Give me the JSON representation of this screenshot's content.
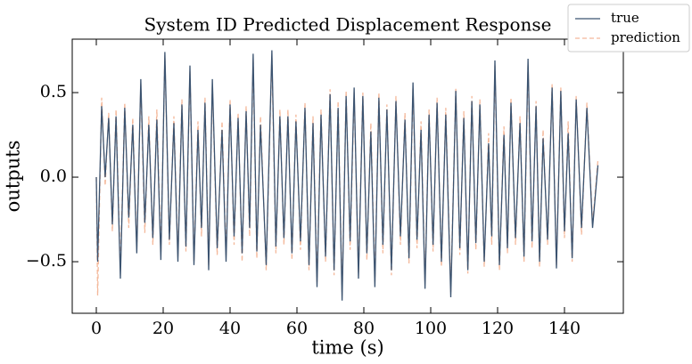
{
  "chart_data": {
    "type": "line",
    "title": "System ID Predicted Displacement Response",
    "x_label": "time (s)",
    "y_label": "outputs",
    "legend": "upper right",
    "xlim": [
      -7.2,
      157.6
    ],
    "ylim": [
      -0.805,
      0.816
    ],
    "xticks": [
      0,
      20,
      40,
      60,
      80,
      100,
      120,
      140
    ],
    "yticks": [
      {
        "value": -0.5,
        "label": "−0.5"
      },
      {
        "value": 0,
        "label": "0.0"
      },
      0.5
    ],
    "x": [
      0,
      0.4,
      1.6,
      2.65,
      3.7,
      4.8,
      5.9,
      7.2,
      8.5,
      9.7,
      10.9,
      12.1,
      13.3,
      14.5,
      15.7,
      16.9,
      18.1,
      19.3,
      20.5,
      21.85,
      23.2,
      24.4,
      25.6,
      26.8,
      28.0,
      29.2,
      30.4,
      31.45,
      32.5,
      33.6,
      34.7,
      36.15,
      37.6,
      38.8,
      40.0,
      41.2,
      42.4,
      43.6,
      44.8,
      45.85,
      46.9,
      48.0,
      49.1,
      50.8,
      52.5,
      53.7,
      54.9,
      56.1,
      57.3,
      58.5,
      59.7,
      61.05,
      62.4,
      63.6,
      64.8,
      66.0,
      67.2,
      68.55,
      69.9,
      71.1,
      72.3,
      73.5,
      74.7,
      75.9,
      77.1,
      78.4,
      79.7,
      80.9,
      82.1,
      83.3,
      84.5,
      85.7,
      86.9,
      88.25,
      89.6,
      90.95,
      92.3,
      93.5,
      94.7,
      95.9,
      97.1,
      98.3,
      99.5,
      100.7,
      101.9,
      103.2,
      104.5,
      106.0,
      107.5,
      108.7,
      109.9,
      111.1,
      112.3,
      113.5,
      114.7,
      116.0,
      117.3,
      118.25,
      119.2,
      120.55,
      121.9,
      122.95,
      124.0,
      125.35,
      126.7,
      127.9,
      129.1,
      130.3,
      131.5,
      132.55,
      133.6,
      134.95,
      136.3,
      137.6,
      138.9,
      140.0,
      141.1,
      142.3,
      143.5,
      145.1,
      146.7,
      148.4,
      150
    ],
    "series": [
      {
        "name": "true",
        "color": "#3b5370",
        "dash": false,
        "values": [
          0,
          -0.5,
          0.42,
          0.0,
          0.35,
          -0.28,
          0.36,
          -0.6,
          0.41,
          -0.24,
          0.31,
          -0.45,
          0.58,
          -0.27,
          0.31,
          -0.36,
          0.34,
          -0.49,
          0.74,
          -0.37,
          0.32,
          -0.5,
          0.43,
          -0.41,
          0.66,
          -0.52,
          0.28,
          -0.3,
          0.44,
          -0.55,
          0.58,
          -0.42,
          0.28,
          -0.5,
          0.43,
          -0.35,
          0.35,
          -0.45,
          0.39,
          -0.3,
          0.73,
          -0.44,
          0.31,
          -0.52,
          0.75,
          -0.41,
          0.36,
          -0.36,
          0.36,
          -0.45,
          0.33,
          -0.38,
          0.41,
          -0.52,
          0.32,
          -0.65,
          0.37,
          -0.47,
          0.49,
          -0.55,
          0.41,
          -0.73,
          0.48,
          -0.38,
          0.53,
          -0.6,
          0.48,
          -0.45,
          0.27,
          -0.65,
          0.47,
          -0.4,
          0.4,
          -0.55,
          0.45,
          -0.35,
          0.34,
          -0.48,
          0.56,
          -0.37,
          0.28,
          -0.66,
          0.37,
          -0.4,
          0.44,
          -0.5,
          0.37,
          -0.71,
          0.51,
          -0.42,
          0.35,
          -0.55,
          0.45,
          -0.39,
          0.43,
          -0.5,
          0.2,
          -0.35,
          0.69,
          -0.52,
          0.25,
          -0.42,
          0.44,
          -0.36,
          0.32,
          -0.47,
          0.7,
          -0.38,
          0.42,
          -0.5,
          0.23,
          -0.37,
          0.53,
          -0.54,
          0.51,
          -0.32,
          0.26,
          -0.48,
          0.46,
          -0.3,
          0.41,
          -0.3,
          0.07
        ]
      },
      {
        "name": "prediction",
        "color": "#f4b89a",
        "dash": true,
        "values": [
          0,
          -0.7,
          0.47,
          -0.05,
          0.38,
          -0.32,
          0.4,
          -0.55,
          0.44,
          -0.3,
          0.35,
          -0.42,
          0.55,
          -0.33,
          0.36,
          -0.4,
          0.4,
          -0.45,
          0.72,
          -0.4,
          0.36,
          -0.47,
          0.46,
          -0.44,
          0.63,
          -0.5,
          0.33,
          -0.35,
          0.47,
          -0.52,
          0.55,
          -0.46,
          0.33,
          -0.47,
          0.46,
          -0.4,
          0.38,
          -0.5,
          0.42,
          -0.35,
          0.7,
          -0.48,
          0.36,
          -0.55,
          0.72,
          -0.45,
          0.4,
          -0.4,
          0.4,
          -0.49,
          0.37,
          -0.43,
          0.44,
          -0.55,
          0.36,
          -0.62,
          0.4,
          -0.5,
          0.52,
          -0.58,
          0.45,
          -0.7,
          0.51,
          -0.43,
          0.5,
          -0.57,
          0.5,
          -0.49,
          0.32,
          -0.62,
          0.5,
          -0.45,
          0.43,
          -0.58,
          0.48,
          -0.4,
          0.38,
          -0.51,
          0.53,
          -0.42,
          0.33,
          -0.63,
          0.4,
          -0.44,
          0.47,
          -0.53,
          0.41,
          -0.68,
          0.53,
          -0.46,
          0.39,
          -0.57,
          0.48,
          -0.43,
          0.46,
          -0.53,
          0.26,
          -0.4,
          0.66,
          -0.55,
          0.3,
          -0.45,
          0.47,
          -0.4,
          0.36,
          -0.5,
          0.67,
          -0.42,
          0.45,
          -0.53,
          0.28,
          -0.4,
          0.55,
          -0.52,
          0.53,
          -0.36,
          0.33,
          -0.5,
          0.48,
          -0.34,
          0.44,
          -0.28,
          0.1
        ]
      }
    ]
  }
}
